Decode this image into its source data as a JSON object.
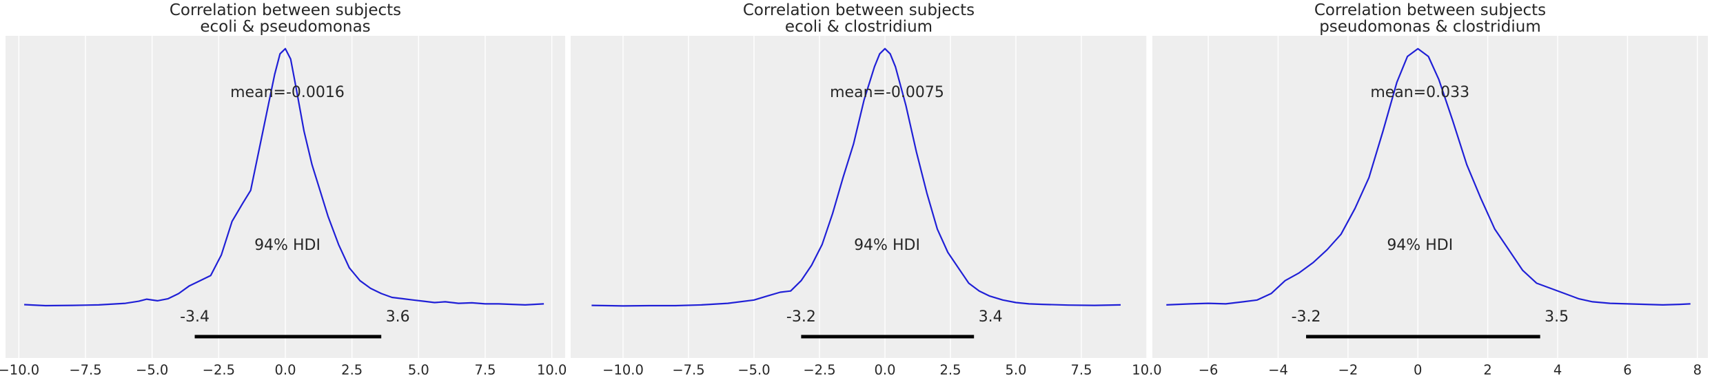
{
  "chart_data": [
    {
      "type": "area",
      "title": [
        "Correlation between subjects",
        "ecoli & pseudomonas"
      ],
      "xlim": [
        -10.5,
        10.5
      ],
      "xticks": [
        -10.0,
        -7.5,
        -5.0,
        -2.5,
        0.0,
        2.5,
        5.0,
        7.5,
        10.0
      ],
      "xtick_labels": [
        "−10.0",
        "−7.5",
        "−5.0",
        "−2.5",
        "0.0",
        "2.5",
        "5.0",
        "7.5",
        "10.0"
      ],
      "ylim_relative": [
        -0.2,
        1.05
      ],
      "grid": true,
      "series": [
        {
          "x": [
            -9.8,
            -9.0,
            -8.0,
            -7.0,
            -6.0,
            -5.5,
            -5.2,
            -4.8,
            -4.4,
            -4.0,
            -3.6,
            -3.2,
            -2.8,
            -2.4,
            -2.0,
            -1.6,
            -1.3,
            -1.0,
            -0.7,
            -0.4,
            -0.2,
            0.0,
            0.2,
            0.4,
            0.7,
            1.0,
            1.3,
            1.6,
            2.0,
            2.4,
            2.8,
            3.2,
            3.6,
            4.0,
            4.4,
            4.8,
            5.2,
            5.6,
            6.0,
            6.5,
            7.0,
            7.5,
            8.0,
            9.0,
            9.7
          ],
          "y": [
            0.007,
            0.003,
            0.004,
            0.006,
            0.012,
            0.02,
            0.028,
            0.022,
            0.03,
            0.05,
            0.08,
            0.1,
            0.12,
            0.2,
            0.33,
            0.4,
            0.45,
            0.6,
            0.75,
            0.9,
            0.98,
            1.0,
            0.96,
            0.85,
            0.68,
            0.55,
            0.45,
            0.35,
            0.24,
            0.15,
            0.1,
            0.07,
            0.05,
            0.035,
            0.03,
            0.025,
            0.02,
            0.015,
            0.018,
            0.012,
            0.014,
            0.01,
            0.01,
            0.006,
            0.01
          ]
        }
      ],
      "mean_label": "mean=-0.0016",
      "hdi_label": "94% HDI",
      "hdi": [
        -3.4,
        3.6
      ],
      "hdi_low_label": "-3.4",
      "hdi_high_label": "3.6"
    },
    {
      "type": "area",
      "title": [
        "Correlation between subjects",
        "ecoli & clostridium"
      ],
      "xlim": [
        -12.0,
        10.0
      ],
      "xticks": [
        -10.0,
        -7.5,
        -5.0,
        -2.5,
        0.0,
        2.5,
        5.0,
        7.5,
        10.0
      ],
      "xtick_labels": [
        "−10.0",
        "−7.5",
        "−5.0",
        "−2.5",
        "0.0",
        "2.5",
        "5.0",
        "7.5",
        "10.0"
      ],
      "ylim_relative": [
        -0.2,
        1.05
      ],
      "grid": true,
      "series": [
        {
          "x": [
            -11.2,
            -10.0,
            -9.0,
            -8.0,
            -7.0,
            -6.0,
            -5.0,
            -4.5,
            -4.0,
            -3.6,
            -3.2,
            -2.8,
            -2.4,
            -2.0,
            -1.6,
            -1.2,
            -0.8,
            -0.4,
            -0.2,
            0.0,
            0.2,
            0.4,
            0.8,
            1.2,
            1.6,
            2.0,
            2.4,
            2.8,
            3.2,
            3.6,
            4.0,
            4.5,
            5.0,
            5.5,
            6.0,
            7.0,
            8.0,
            9.0
          ],
          "y": [
            0.004,
            0.002,
            0.003,
            0.003,
            0.006,
            0.012,
            0.025,
            0.04,
            0.055,
            0.06,
            0.1,
            0.16,
            0.24,
            0.36,
            0.5,
            0.63,
            0.8,
            0.93,
            0.98,
            1.0,
            0.98,
            0.93,
            0.78,
            0.6,
            0.44,
            0.3,
            0.21,
            0.15,
            0.09,
            0.06,
            0.04,
            0.025,
            0.015,
            0.01,
            0.008,
            0.005,
            0.004,
            0.006
          ]
        }
      ],
      "mean_label": "mean=-0.0075",
      "hdi_label": "94% HDI",
      "hdi": [
        -3.2,
        3.4
      ],
      "hdi_low_label": "-3.2",
      "hdi_high_label": "3.4"
    },
    {
      "type": "area",
      "title": [
        "Correlation between subjects",
        "pseudomonas & clostridium"
      ],
      "xlim": [
        -7.6,
        8.3
      ],
      "xticks": [
        -6,
        -4,
        -2,
        0,
        2,
        4,
        6,
        8
      ],
      "xtick_labels": [
        "−6",
        "−4",
        "−2",
        "0",
        "2",
        "4",
        "6",
        "8"
      ],
      "ylim_relative": [
        -0.2,
        1.05
      ],
      "grid": true,
      "series": [
        {
          "x": [
            -7.2,
            -6.5,
            -6.0,
            -5.5,
            -5.0,
            -4.6,
            -4.2,
            -3.8,
            -3.4,
            -3.0,
            -2.6,
            -2.2,
            -1.8,
            -1.4,
            -1.0,
            -0.6,
            -0.3,
            0.0,
            0.3,
            0.6,
            1.0,
            1.4,
            1.8,
            2.2,
            2.6,
            3.0,
            3.4,
            3.8,
            4.2,
            4.6,
            5.0,
            5.5,
            6.0,
            6.5,
            7.0,
            7.5,
            7.8
          ],
          "y": [
            0.006,
            0.01,
            0.012,
            0.01,
            0.018,
            0.025,
            0.05,
            0.1,
            0.13,
            0.17,
            0.22,
            0.28,
            0.38,
            0.5,
            0.68,
            0.87,
            0.97,
            1.0,
            0.97,
            0.88,
            0.72,
            0.55,
            0.42,
            0.3,
            0.22,
            0.14,
            0.09,
            0.07,
            0.05,
            0.03,
            0.018,
            0.012,
            0.01,
            0.008,
            0.006,
            0.008,
            0.01
          ]
        }
      ],
      "mean_label": "mean=0.033",
      "hdi_label": "94% HDI",
      "hdi": [
        -3.2,
        3.5
      ],
      "hdi_low_label": "-3.2",
      "hdi_high_label": "3.5"
    }
  ],
  "colors": {
    "background": "#eeeeee",
    "grid": "#ffffff",
    "curve": "#1f1fd6",
    "hdi_bar": "#000000",
    "text": "#262626"
  }
}
